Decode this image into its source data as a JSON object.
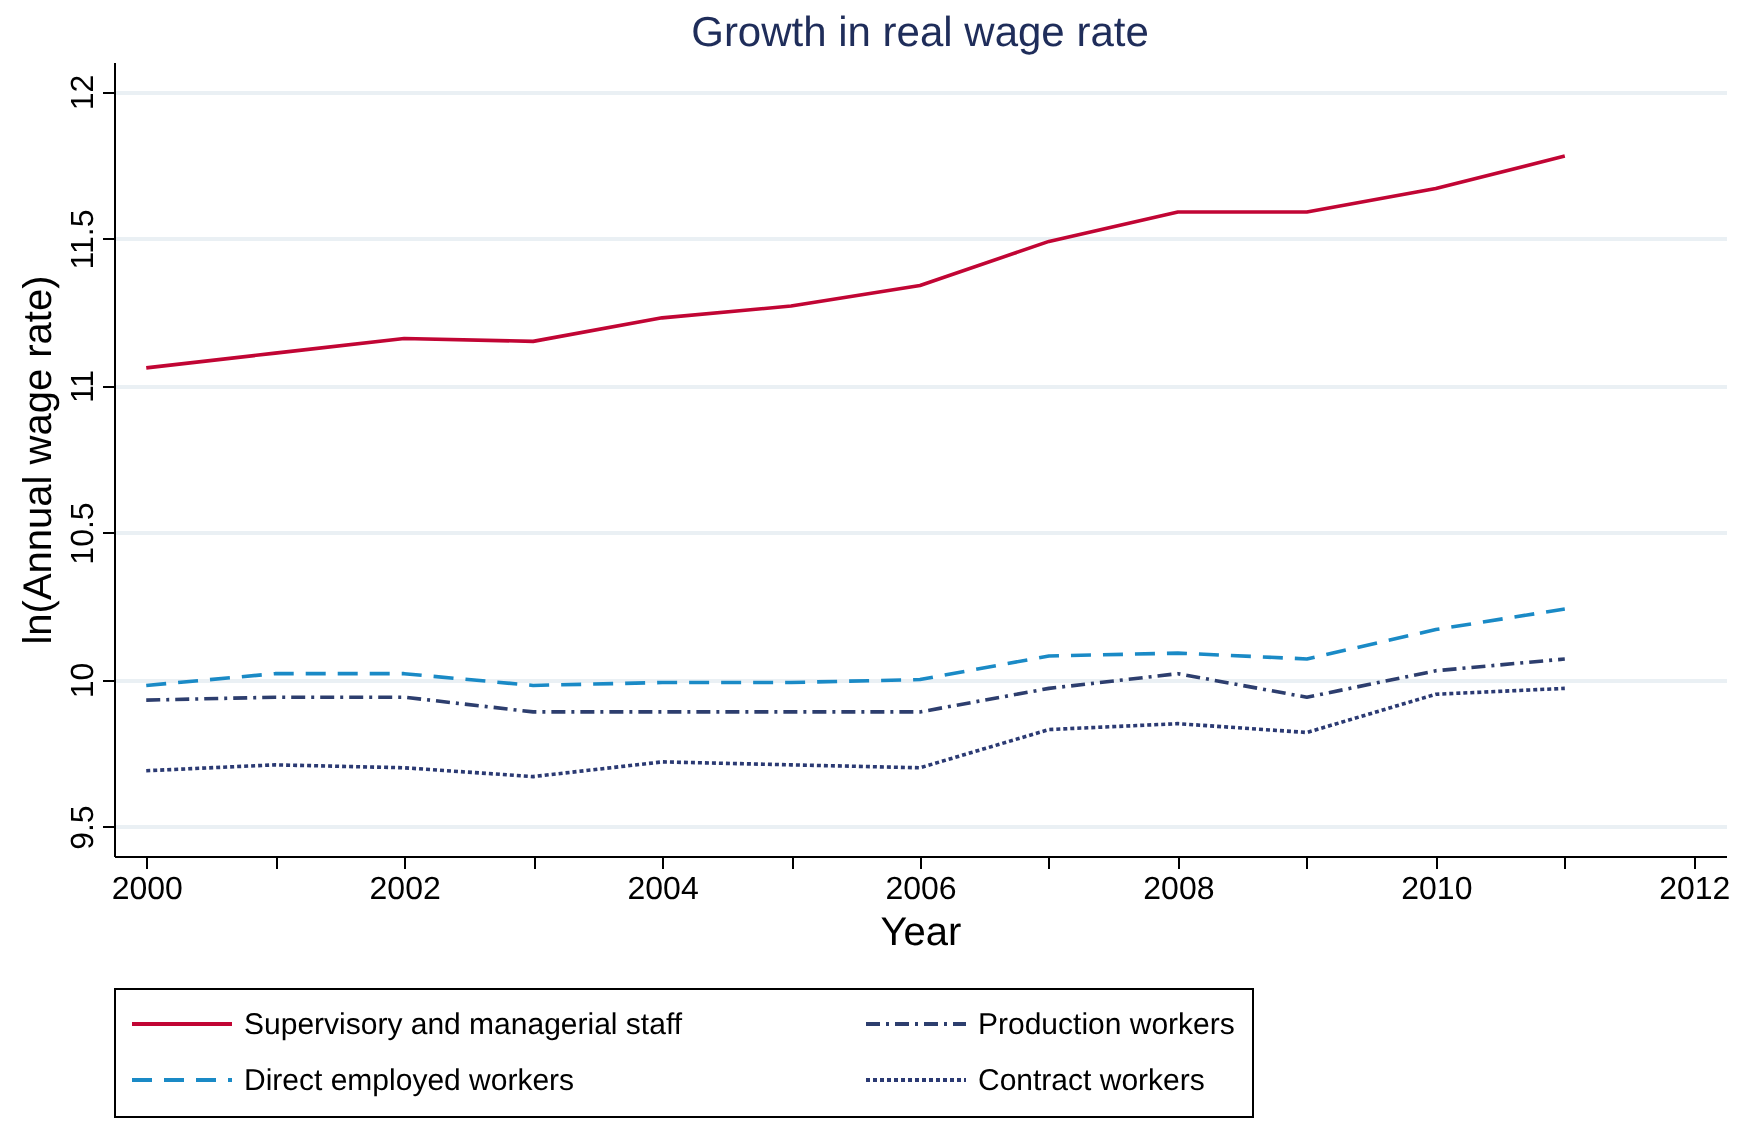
{
  "chart_data": {
    "type": "line",
    "title": "Growth in real wage rate",
    "xlabel": "Year",
    "ylabel": "ln(Annual wage rate)",
    "x": [
      2000,
      2001,
      2002,
      2003,
      2004,
      2005,
      2006,
      2007,
      2008,
      2009,
      2010,
      2011
    ],
    "series": [
      {
        "name": "Supervisory and managerial staff",
        "color": "#c10534",
        "line_style": "solid",
        "values": [
          11.06,
          11.11,
          11.16,
          11.15,
          11.23,
          11.27,
          11.34,
          11.49,
          11.59,
          11.59,
          11.67,
          11.78
        ]
      },
      {
        "name": "Production workers",
        "color": "#2d3e6e",
        "line_style": "dashdot",
        "values": [
          9.93,
          9.94,
          9.94,
          9.89,
          9.89,
          9.89,
          9.89,
          9.97,
          10.02,
          9.94,
          10.03,
          10.07
        ]
      },
      {
        "name": "Direct employed workers",
        "color": "#1a8ac6",
        "line_style": "dashed",
        "values": [
          9.98,
          10.02,
          10.02,
          9.98,
          9.99,
          9.99,
          10.0,
          10.08,
          10.09,
          10.07,
          10.17,
          10.24
        ]
      },
      {
        "name": "Contract workers",
        "color": "#2b3a73",
        "line_style": "dotted",
        "values": [
          9.69,
          9.71,
          9.7,
          9.67,
          9.72,
          9.71,
          9.7,
          9.83,
          9.85,
          9.82,
          9.95,
          9.97
        ]
      }
    ],
    "xlim": [
      1999.75,
      2012.25
    ],
    "xticks": [
      2000,
      {
        "value": 2001,
        "label": null
      },
      2002,
      {
        "value": 2003,
        "label": null
      },
      2004,
      {
        "value": 2005,
        "label": null
      },
      2006,
      {
        "value": 2007,
        "label": null
      },
      2008,
      {
        "value": 2009,
        "label": null
      },
      2010,
      {
        "value": 2011,
        "label": null
      },
      2012
    ],
    "ylim": [
      9.4,
      12.1
    ],
    "yticks": [
      9.5,
      10,
      10.5,
      11,
      11.5,
      12
    ],
    "grid": "y",
    "legend": "bottom",
    "marker": "none"
  }
}
